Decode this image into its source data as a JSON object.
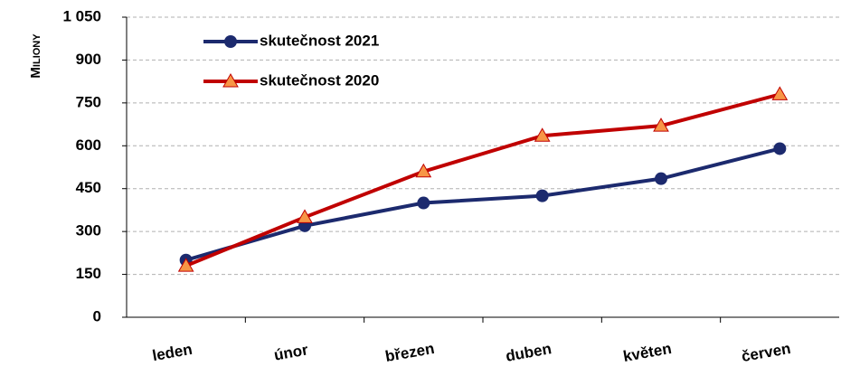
{
  "chart_data": {
    "type": "line",
    "y_label": "Miliony",
    "categories": [
      "leden",
      "únor",
      "březen",
      "duben",
      "květen",
      "červen"
    ],
    "series": [
      {
        "name": "skutečnost 2021",
        "color": "#1c2a6e",
        "marker": "circle",
        "values": [
          200,
          320,
          400,
          425,
          485,
          590
        ]
      },
      {
        "name": "skutečnost 2020",
        "color": "#c00000",
        "marker": "triangle",
        "marker_color": "#f79646",
        "values": [
          180,
          350,
          510,
          635,
          670,
          780
        ]
      }
    ],
    "ylim": [
      0,
      1050
    ],
    "yticks": [
      0,
      150,
      300,
      450,
      600,
      750,
      900,
      {
        "value": 1050,
        "label": "1 050"
      }
    ],
    "grid": true,
    "legend": "upper left"
  }
}
